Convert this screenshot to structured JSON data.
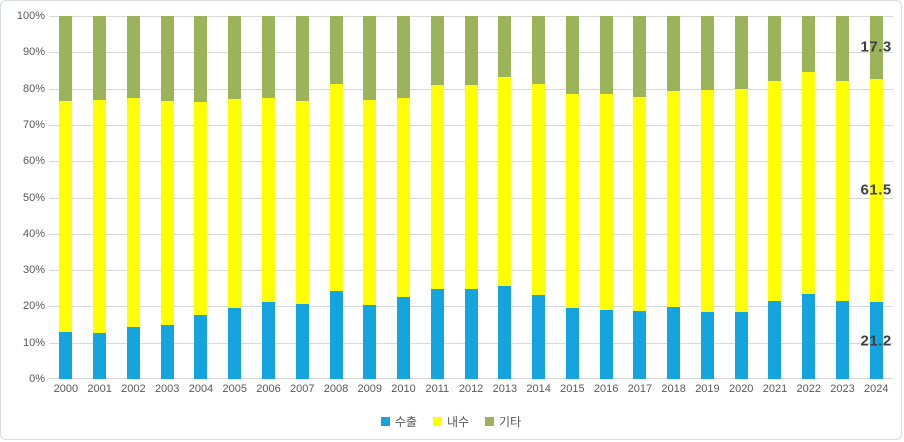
{
  "chart_data": {
    "type": "bar",
    "subtype": "stacked-100-percent",
    "title": "",
    "xlabel": "",
    "ylabel": "",
    "ylim": [
      0,
      100
    ],
    "grid": true,
    "legend_position": "bottom",
    "gridline_color": "#d9d9d9",
    "axis_text_color": "#595959",
    "data_label_color": "#3f3f3f",
    "categories": [
      "2000",
      "2001",
      "2002",
      "2003",
      "2004",
      "2005",
      "2006",
      "2007",
      "2008",
      "2009",
      "2010",
      "2011",
      "2012",
      "2013",
      "2014",
      "2015",
      "2016",
      "2017",
      "2018",
      "2019",
      "2020",
      "2021",
      "2022",
      "2023",
      "2024"
    ],
    "y_ticks": [
      "0%",
      "10%",
      "20%",
      "30%",
      "40%",
      "50%",
      "60%",
      "70%",
      "80%",
      "90%",
      "100%"
    ],
    "series": [
      {
        "name": "수출",
        "color": "#14a4de",
        "values": [
          13.0,
          12.7,
          14.3,
          15.0,
          17.7,
          19.6,
          21.3,
          20.8,
          24.2,
          20.3,
          22.5,
          24.7,
          24.7,
          25.5,
          23.1,
          19.6,
          19.0,
          18.7,
          19.9,
          18.5,
          18.5,
          21.4,
          23.3,
          21.4,
          21.2
        ]
      },
      {
        "name": "내수",
        "color": "#ffff00",
        "values": [
          63.6,
          64.1,
          63.0,
          61.7,
          58.7,
          57.5,
          56.1,
          55.7,
          57.2,
          56.6,
          54.8,
          56.2,
          56.3,
          57.7,
          58.3,
          59.0,
          59.6,
          58.9,
          59.5,
          61.0,
          61.3,
          60.8,
          61.4,
          60.8,
          61.5
        ]
      },
      {
        "name": "기타",
        "color": "#9bb359",
        "values": [
          23.4,
          23.2,
          22.7,
          23.3,
          23.6,
          22.9,
          22.6,
          23.5,
          18.6,
          23.1,
          22.7,
          19.1,
          19.0,
          16.8,
          18.6,
          21.4,
          21.4,
          22.4,
          20.6,
          20.5,
          20.2,
          17.8,
          15.3,
          17.8,
          17.3
        ]
      }
    ],
    "annotations": [
      {
        "series": "수출",
        "text": "21.2",
        "category": "2024"
      },
      {
        "series": "내수",
        "text": "61.5",
        "category": "2024"
      },
      {
        "series": "기타",
        "text": "17.3",
        "category": "2024"
      }
    ]
  },
  "legend": {
    "items": [
      {
        "label": "수출"
      },
      {
        "label": "내수"
      },
      {
        "label": "기타"
      }
    ]
  }
}
